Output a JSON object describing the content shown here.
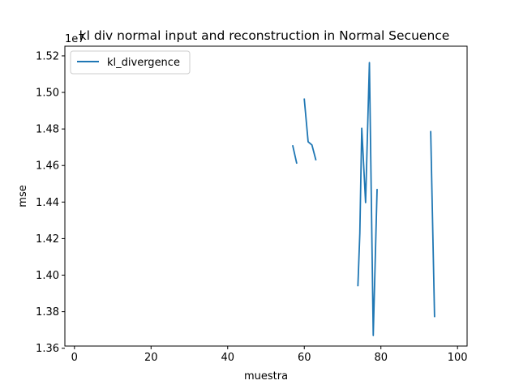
{
  "chart_data": {
    "type": "line",
    "title": "kl div normal input and  reconstruction in Normal Secuence",
    "xlabel": "muestra",
    "ylabel": "mse",
    "y_offset_label": "1e7",
    "xlim": [
      -2.5,
      102.5
    ],
    "ylim": [
      1.3612,
      1.5253
    ],
    "xticks": [
      0,
      20,
      40,
      60,
      80,
      100
    ],
    "xtick_labels": [
      "0",
      "20",
      "40",
      "60",
      "80",
      "100"
    ],
    "yticks": [
      1.36,
      1.38,
      1.4,
      1.42,
      1.44,
      1.46,
      1.48,
      1.5,
      1.52
    ],
    "ytick_labels": [
      "1.36",
      "1.38",
      "1.40",
      "1.42",
      "1.44",
      "1.46",
      "1.48",
      "1.50",
      "1.52"
    ],
    "grid": false,
    "legend_position": "top-left",
    "series": [
      {
        "name": "kl_divergence",
        "color": "#1f77b4",
        "segments": [
          [
            [
              57,
              1.4707
            ],
            [
              58,
              1.4614
            ]
          ],
          [
            [
              60,
              1.4963
            ],
            [
              61,
              1.473
            ],
            [
              62,
              1.4712
            ],
            [
              63,
              1.4632
            ]
          ],
          [
            [
              74,
              1.3943
            ],
            [
              74.5,
              1.423
            ],
            [
              75,
              1.4804
            ],
            [
              76,
              1.4397
            ],
            [
              77,
              1.5163
            ],
            [
              78,
              1.367
            ],
            [
              79,
              1.4468
            ]
          ],
          [
            [
              93,
              1.4785
            ],
            [
              94,
              1.3774
            ]
          ]
        ]
      }
    ]
  }
}
